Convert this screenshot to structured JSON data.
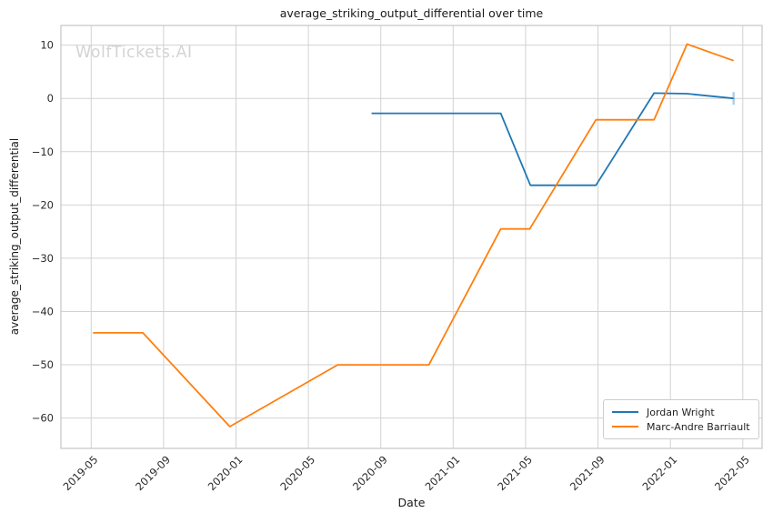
{
  "chart_data": {
    "type": "line",
    "title": "average_striking_output_differential over time",
    "xlabel": "Date",
    "ylabel": "average_striking_output_differential",
    "watermark": "WolfTickets.AI",
    "grid": true,
    "legend_position": "lower right",
    "xlim": [
      "2019-03-11",
      "2022-06-03"
    ],
    "ylim": [
      -65.7,
      13.7
    ],
    "x_ticks": [
      {
        "date": "2019-05-01",
        "label": "2019-05"
      },
      {
        "date": "2019-09-01",
        "label": "2019-09"
      },
      {
        "date": "2020-01-01",
        "label": "2020-01"
      },
      {
        "date": "2020-05-01",
        "label": "2020-05"
      },
      {
        "date": "2020-09-01",
        "label": "2020-09"
      },
      {
        "date": "2021-01-01",
        "label": "2021-01"
      },
      {
        "date": "2021-05-01",
        "label": "2021-05"
      },
      {
        "date": "2021-09-01",
        "label": "2021-09"
      },
      {
        "date": "2022-01-01",
        "label": "2022-01"
      },
      {
        "date": "2022-05-01",
        "label": "2022-05"
      }
    ],
    "y_ticks": [
      {
        "value": 10,
        "label": "10"
      },
      {
        "value": 0,
        "label": "0"
      },
      {
        "value": -10,
        "label": "−10"
      },
      {
        "value": -20,
        "label": "−20"
      },
      {
        "value": -30,
        "label": "−30"
      },
      {
        "value": -40,
        "label": "−40"
      },
      {
        "value": -50,
        "label": "−50"
      },
      {
        "value": -60,
        "label": "−60"
      }
    ],
    "series": [
      {
        "name": "Jordan Wright",
        "color": "#1f77b4",
        "end_cap": true,
        "points": [
          [
            "2020-08-16",
            -2.8
          ],
          [
            "2021-03-20",
            -2.8
          ],
          [
            "2021-05-09",
            -16.3
          ],
          [
            "2021-08-28",
            -16.3
          ],
          [
            "2021-12-04",
            1.0
          ],
          [
            "2022-01-29",
            0.9
          ],
          [
            "2022-04-16",
            0.0
          ]
        ]
      },
      {
        "name": "Marc-Andre Barriault",
        "color": "#ff7f0e",
        "end_cap": false,
        "points": [
          [
            "2019-05-04",
            -44.0
          ],
          [
            "2019-07-27",
            -44.0
          ],
          [
            "2019-12-21",
            -61.6
          ],
          [
            "2020-06-20",
            -50.0
          ],
          [
            "2020-11-21",
            -50.0
          ],
          [
            "2021-03-20",
            -24.5
          ],
          [
            "2021-05-08",
            -24.5
          ],
          [
            "2021-08-28",
            -4.0
          ],
          [
            "2021-12-04",
            -4.0
          ],
          [
            "2022-01-29",
            10.2
          ],
          [
            "2022-04-16",
            7.1
          ]
        ]
      }
    ]
  },
  "colors": {
    "grid": "#d2d2d2",
    "spine": "#c6c6c6",
    "text": "#1a1a1a",
    "tick_text": "#2b2b2b",
    "watermark": "#d4d4d4",
    "legend_border": "#cccccc",
    "background": "#ffffff"
  }
}
